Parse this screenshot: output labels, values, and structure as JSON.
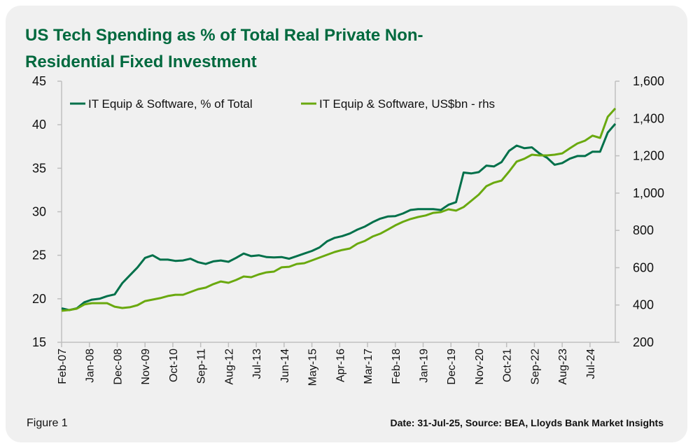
{
  "chart_data": {
    "type": "line",
    "title": "US Tech Spending as % of Total Real Private Non-Residential Fixed Investment",
    "title_lines": [
      "US Tech Spending as % of Total Real Private Non-",
      "Residential Fixed Investment"
    ],
    "frequency": "quarterly",
    "x": [
      "Feb-07",
      "May-07",
      "Aug-07",
      "Nov-07",
      "Feb-08",
      "May-08",
      "Aug-08",
      "Nov-08",
      "Feb-09",
      "May-09",
      "Aug-09",
      "Nov-09",
      "Feb-10",
      "May-10",
      "Aug-10",
      "Nov-10",
      "Feb-11",
      "May-11",
      "Aug-11",
      "Nov-11",
      "Feb-12",
      "May-12",
      "Aug-12",
      "Nov-12",
      "Feb-13",
      "May-13",
      "Aug-13",
      "Nov-13",
      "Feb-14",
      "May-14",
      "Aug-14",
      "Nov-14",
      "Feb-15",
      "May-15",
      "Aug-15",
      "Nov-15",
      "Feb-16",
      "May-16",
      "Aug-16",
      "Nov-16",
      "Feb-17",
      "May-17",
      "Aug-17",
      "Nov-17",
      "Feb-18",
      "May-18",
      "Aug-18",
      "Nov-18",
      "Feb-19",
      "May-19",
      "Aug-19",
      "Nov-19",
      "Feb-20",
      "May-20",
      "Aug-20",
      "Nov-20",
      "Feb-21",
      "May-21",
      "Aug-21",
      "Nov-21",
      "Feb-22",
      "May-22",
      "Aug-22",
      "Nov-22",
      "Feb-23",
      "May-23",
      "Aug-23",
      "Nov-23",
      "Feb-24",
      "May-24",
      "Aug-24",
      "Nov-24",
      "Feb-25",
      "May-25"
    ],
    "x_tick_labels": [
      "Feb-07",
      "Jan-08",
      "Dec-08",
      "Nov-09",
      "Oct-10",
      "Sep-11",
      "Aug-12",
      "Jul-13",
      "Jun-14",
      "May-15",
      "Apr-16",
      "Mar-17",
      "Feb-18",
      "Jan-19",
      "Dec-19",
      "Nov-20",
      "Oct-21",
      "Sep-22",
      "Aug-23",
      "Jul-24"
    ],
    "series": [
      {
        "name": "IT Equip & Software, % of Total",
        "axis": "left",
        "color": "#00704a",
        "values": [
          18.9,
          18.7,
          18.9,
          19.6,
          19.9,
          20.0,
          20.3,
          20.5,
          21.8,
          22.7,
          23.6,
          24.7,
          25.0,
          24.5,
          24.5,
          24.35,
          24.4,
          24.6,
          24.2,
          24.0,
          24.3,
          24.4,
          24.25,
          24.7,
          25.2,
          24.9,
          25.0,
          24.8,
          24.75,
          24.8,
          24.6,
          24.9,
          25.2,
          25.5,
          25.9,
          26.6,
          27.0,
          27.2,
          27.5,
          27.95,
          28.3,
          28.8,
          29.2,
          29.45,
          29.5,
          29.8,
          30.2,
          30.3,
          30.3,
          30.3,
          30.2,
          30.8,
          31.1,
          34.5,
          34.4,
          34.55,
          35.3,
          35.2,
          35.7,
          37.0,
          37.6,
          37.3,
          37.4,
          36.7,
          36.2,
          35.4,
          35.6,
          36.1,
          36.4,
          36.4,
          36.9,
          36.9,
          39.1,
          40.1
        ]
      },
      {
        "name": "IT Equip & Software, US$bn - rhs",
        "axis": "right",
        "color": "#6aa90f",
        "values": [
          369,
          373,
          380,
          403,
          410,
          410,
          410,
          391,
          384,
          388,
          399,
          421,
          429,
          437,
          448,
          455,
          455,
          470,
          485,
          493,
          512,
          526,
          519,
          534,
          553,
          549,
          564,
          575,
          579,
          602,
          605,
          620,
          624,
          639,
          654,
          669,
          684,
          695,
          703,
          729,
          744,
          767,
          782,
          804,
          827,
          846,
          861,
          872,
          880,
          894,
          898,
          913,
          906,
          925,
          958,
          992,
          1037,
          1056,
          1067,
          1116,
          1169,
          1184,
          1206,
          1202,
          1202,
          1206,
          1213,
          1240,
          1266,
          1281,
          1308,
          1296,
          1409,
          1454
        ]
      }
    ],
    "y_left": {
      "range": [
        15,
        45
      ],
      "ticks": [
        "15",
        "20",
        "25",
        "30",
        "35",
        "40",
        "45"
      ]
    },
    "y_right": {
      "range": [
        200,
        1600
      ],
      "ticks": [
        "200",
        "400",
        "600",
        "800",
        "1,000",
        "1,200",
        "1,400",
        "1,600"
      ]
    },
    "grid": false,
    "legend_position": "top-left"
  },
  "footer": {
    "figure_label": "Figure 1",
    "source": "Date: 31-Jul-25,  Source: BEA, Lloyds Bank Market Insights"
  }
}
